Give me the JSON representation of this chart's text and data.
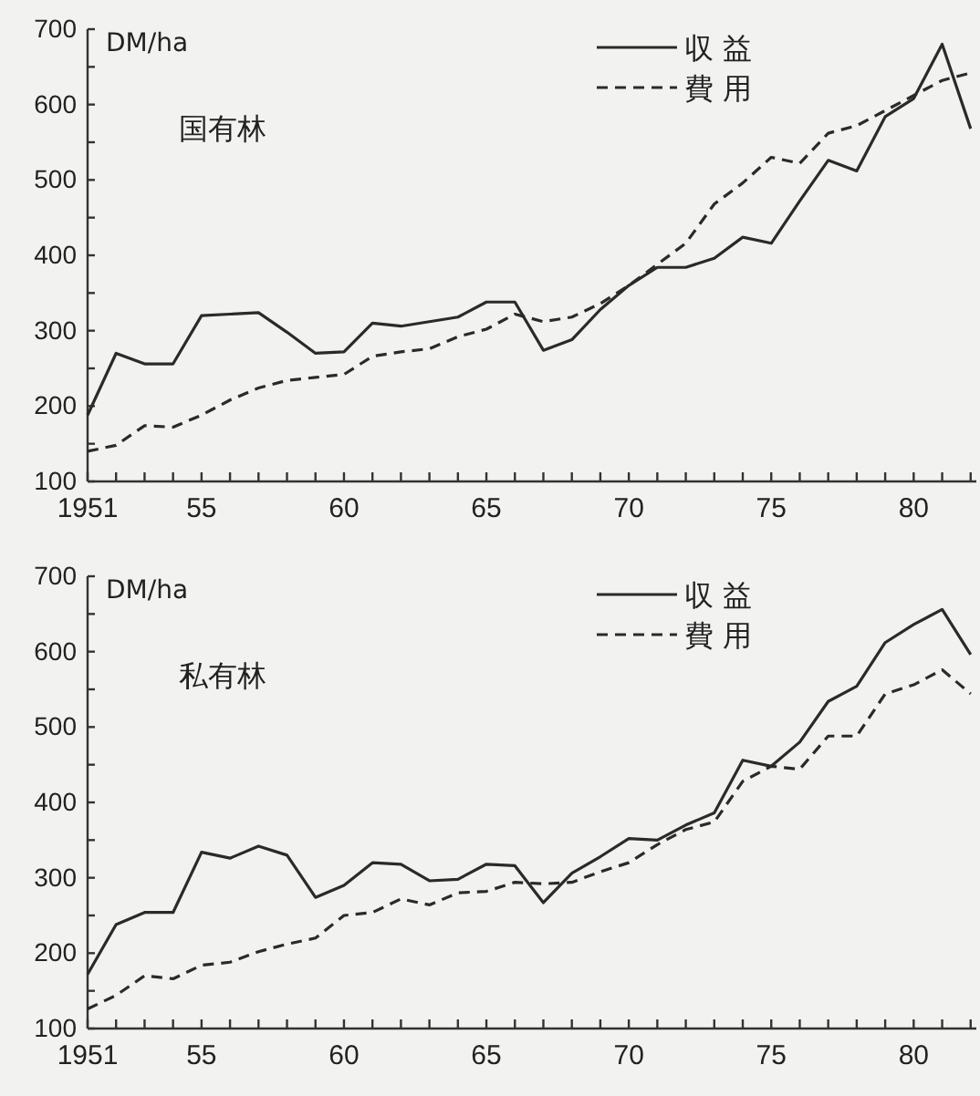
{
  "chart_data": [
    {
      "type": "line",
      "title": "国有林",
      "ylabel": "DM/ha",
      "x": [
        1951,
        1952,
        1953,
        1954,
        1955,
        1956,
        1957,
        1958,
        1959,
        1960,
        1961,
        1962,
        1963,
        1964,
        1965,
        1966,
        1967,
        1968,
        1969,
        1970,
        1971,
        1972,
        1973,
        1974,
        1975,
        1976,
        1977,
        1978,
        1979,
        1980,
        1981,
        1982
      ],
      "series": [
        {
          "name": "収 益",
          "color": "#2a2a2a",
          "line_style": "solid",
          "values": [
            188,
            270,
            256,
            256,
            320,
            322,
            324,
            298,
            270,
            272,
            310,
            306,
            312,
            318,
            338,
            338,
            274,
            288,
            328,
            360,
            384,
            384,
            396,
            424,
            416,
            472,
            526,
            512,
            584,
            608,
            680,
            568
          ]
        },
        {
          "name": "費 用",
          "color": "#2a2a2a",
          "line_style": "dashed",
          "values": [
            140,
            148,
            174,
            172,
            188,
            208,
            224,
            234,
            238,
            242,
            266,
            272,
            276,
            292,
            302,
            322,
            312,
            318,
            336,
            360,
            388,
            416,
            468,
            496,
            530,
            522,
            562,
            572,
            592,
            612,
            632,
            642
          ]
        }
      ],
      "xlim": [
        1951,
        1982.2
      ],
      "ylim": [
        100,
        700
      ],
      "xticks": [
        {
          "value": 1951,
          "label": "1951"
        },
        {
          "value": 1952,
          "label": null
        },
        {
          "value": 1953,
          "label": null
        },
        {
          "value": 1954,
          "label": null
        },
        {
          "value": 1955,
          "label": "55"
        },
        {
          "value": 1956,
          "label": null
        },
        {
          "value": 1957,
          "label": null
        },
        {
          "value": 1958,
          "label": null
        },
        {
          "value": 1959,
          "label": null
        },
        {
          "value": 1960,
          "label": "60"
        },
        {
          "value": 1961,
          "label": null
        },
        {
          "value": 1962,
          "label": null
        },
        {
          "value": 1963,
          "label": null
        },
        {
          "value": 1964,
          "label": null
        },
        {
          "value": 1965,
          "label": "65"
        },
        {
          "value": 1966,
          "label": null
        },
        {
          "value": 1967,
          "label": null
        },
        {
          "value": 1968,
          "label": null
        },
        {
          "value": 1969,
          "label": null
        },
        {
          "value": 1970,
          "label": "70"
        },
        {
          "value": 1971,
          "label": null
        },
        {
          "value": 1972,
          "label": null
        },
        {
          "value": 1973,
          "label": null
        },
        {
          "value": 1974,
          "label": null
        },
        {
          "value": 1975,
          "label": "75"
        },
        {
          "value": 1976,
          "label": null
        },
        {
          "value": 1977,
          "label": null
        },
        {
          "value": 1978,
          "label": null
        },
        {
          "value": 1979,
          "label": null
        },
        {
          "value": 1980,
          "label": "80"
        },
        {
          "value": 1981,
          "label": null
        },
        {
          "value": 1982,
          "label": null
        }
      ],
      "yticks": [
        100,
        {
          "value": 150,
          "label": null
        },
        200,
        {
          "value": 250,
          "label": null
        },
        300,
        {
          "value": 350,
          "label": null
        },
        400,
        {
          "value": 450,
          "label": null
        },
        500,
        {
          "value": 550,
          "label": null
        },
        600,
        {
          "value": 650,
          "label": null
        },
        700
      ],
      "legend": "top right",
      "grid": false,
      "marker": "none"
    },
    {
      "type": "line",
      "title": "私有林",
      "ylabel": "DM/ha",
      "x": [
        1951,
        1952,
        1953,
        1954,
        1955,
        1956,
        1957,
        1958,
        1959,
        1960,
        1961,
        1962,
        1963,
        1964,
        1965,
        1966,
        1967,
        1968,
        1969,
        1970,
        1971,
        1972,
        1973,
        1974,
        1975,
        1976,
        1977,
        1978,
        1979,
        1980,
        1981,
        1982
      ],
      "series": [
        {
          "name": "収 益",
          "color": "#2a2a2a",
          "line_style": "solid",
          "values": [
            172,
            238,
            254,
            254,
            334,
            326,
            342,
            330,
            274,
            290,
            320,
            318,
            296,
            298,
            318,
            316,
            267,
            306,
            328,
            352,
            350,
            370,
            386,
            456,
            448,
            480,
            534,
            554,
            612,
            636,
            656,
            596
          ]
        },
        {
          "name": "費 用",
          "color": "#2a2a2a",
          "line_style": "dashed",
          "values": [
            126,
            144,
            170,
            166,
            184,
            188,
            202,
            212,
            220,
            250,
            254,
            272,
            264,
            280,
            282,
            294,
            292,
            294,
            308,
            320,
            344,
            364,
            374,
            428,
            448,
            444,
            488,
            488,
            544,
            556,
            576,
            544
          ]
        }
      ],
      "xlim": [
        1951,
        1982.2
      ],
      "ylim": [
        100,
        700
      ],
      "xticks": [
        {
          "value": 1951,
          "label": "1951"
        },
        {
          "value": 1952,
          "label": null
        },
        {
          "value": 1953,
          "label": null
        },
        {
          "value": 1954,
          "label": null
        },
        {
          "value": 1955,
          "label": "55"
        },
        {
          "value": 1956,
          "label": null
        },
        {
          "value": 1957,
          "label": null
        },
        {
          "value": 1958,
          "label": null
        },
        {
          "value": 1959,
          "label": null
        },
        {
          "value": 1960,
          "label": "60"
        },
        {
          "value": 1961,
          "label": null
        },
        {
          "value": 1962,
          "label": null
        },
        {
          "value": 1963,
          "label": null
        },
        {
          "value": 1964,
          "label": null
        },
        {
          "value": 1965,
          "label": "65"
        },
        {
          "value": 1966,
          "label": null
        },
        {
          "value": 1967,
          "label": null
        },
        {
          "value": 1968,
          "label": null
        },
        {
          "value": 1969,
          "label": null
        },
        {
          "value": 1970,
          "label": "70"
        },
        {
          "value": 1971,
          "label": null
        },
        {
          "value": 1972,
          "label": null
        },
        {
          "value": 1973,
          "label": null
        },
        {
          "value": 1974,
          "label": null
        },
        {
          "value": 1975,
          "label": "75"
        },
        {
          "value": 1976,
          "label": null
        },
        {
          "value": 1977,
          "label": null
        },
        {
          "value": 1978,
          "label": null
        },
        {
          "value": 1979,
          "label": null
        },
        {
          "value": 1980,
          "label": "80"
        },
        {
          "value": 1981,
          "label": null
        },
        {
          "value": 1982,
          "label": null
        }
      ],
      "yticks": [
        100,
        {
          "value": 150,
          "label": null
        },
        200,
        {
          "value": 250,
          "label": null
        },
        300,
        {
          "value": 350,
          "label": null
        },
        400,
        {
          "value": 450,
          "label": null
        },
        500,
        {
          "value": 550,
          "label": null
        },
        600,
        {
          "value": 650,
          "label": null
        },
        700
      ],
      "legend": "top right",
      "grid": false,
      "marker": "none"
    }
  ]
}
